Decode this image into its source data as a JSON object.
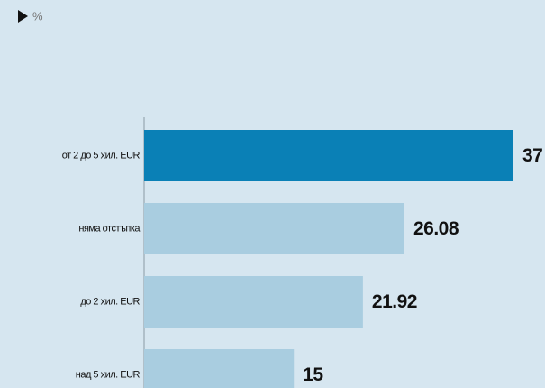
{
  "chart_data": {
    "type": "hbar",
    "subtitle": "%",
    "categories": [
      "от 2 до 5 хил. EUR",
      "няма отстъпка",
      "до 2 хил. EUR",
      "над 5 хил. EUR"
    ],
    "values": [
      37,
      26.08,
      21.92,
      15
    ],
    "colors": [
      "#0a80b6",
      "#a9cde0",
      "#a9cde0",
      "#a9cde0"
    ]
  }
}
